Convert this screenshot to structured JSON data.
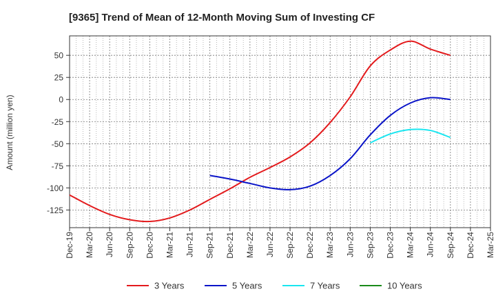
{
  "chart_data": {
    "type": "line",
    "title": "[9365]  Trend of Mean of 12-Month Moving Sum of Investing CF",
    "xlabel": "",
    "ylabel": "Amount (million yen)",
    "ylim": [
      -145,
      72
    ],
    "yticks": [
      50,
      25,
      0,
      -25,
      -50,
      -75,
      -100,
      -125
    ],
    "categories": [
      "Dec-19",
      "Mar-20",
      "Jun-20",
      "Sep-20",
      "Dec-20",
      "Mar-21",
      "Jun-21",
      "Sep-21",
      "Dec-21",
      "Mar-22",
      "Jun-22",
      "Sep-22",
      "Dec-22",
      "Mar-23",
      "Jun-23",
      "Sep-23",
      "Dec-23",
      "Mar-24",
      "Jun-24",
      "Sep-24",
      "Dec-24",
      "Mar-25"
    ],
    "grid": true,
    "legend_position": "bottom",
    "series": [
      {
        "name": "3 Years",
        "color": "#e31a1c",
        "values": [
          -108,
          -120,
          -130,
          -136,
          -138,
          -134,
          -125,
          -113,
          -101,
          -88,
          -77,
          -65,
          -49,
          -26,
          3,
          38,
          56,
          66,
          57,
          50,
          null,
          null
        ]
      },
      {
        "name": "5 Years",
        "color": "#0a14c8",
        "values": [
          null,
          null,
          null,
          null,
          null,
          null,
          null,
          -86,
          -90,
          -95,
          -100,
          -102,
          -98,
          -86,
          -67,
          -40,
          -18,
          -4,
          2,
          0,
          null,
          null
        ]
      },
      {
        "name": "7 Years",
        "color": "#19e6f0",
        "values": [
          null,
          null,
          null,
          null,
          null,
          null,
          null,
          null,
          null,
          null,
          null,
          null,
          null,
          null,
          null,
          -49,
          -39,
          -34,
          -35,
          -43,
          null,
          null
        ]
      },
      {
        "name": "10 Years",
        "color": "#1a8a1a",
        "values": [
          null,
          null,
          null,
          null,
          null,
          null,
          null,
          null,
          null,
          null,
          null,
          null,
          null,
          null,
          null,
          null,
          null,
          null,
          null,
          null,
          null,
          null
        ]
      }
    ]
  }
}
